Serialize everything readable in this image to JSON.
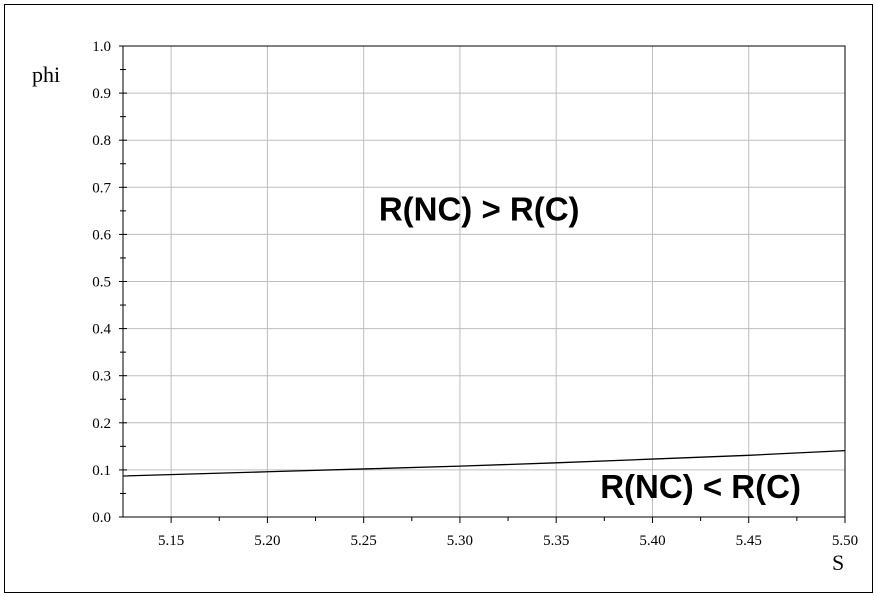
{
  "chart_data": {
    "type": "line",
    "title": "",
    "xlabel": "S",
    "ylabel": "phi",
    "xlim": [
      5.125,
      5.5
    ],
    "ylim": [
      0.0,
      1.0
    ],
    "xticks": [
      5.15,
      5.2,
      5.25,
      5.3,
      5.35,
      5.4,
      5.45,
      5.5
    ],
    "xtick_labels": [
      "5.15",
      "5.20",
      "5.25",
      "5.30",
      "5.35",
      "5.40",
      "5.45",
      "5.50"
    ],
    "yticks": [
      0.0,
      0.1,
      0.2,
      0.3,
      0.4,
      0.5,
      0.6,
      0.7,
      0.8,
      0.9,
      1.0
    ],
    "ytick_labels": [
      "0.0",
      "0.1",
      "0.2",
      "0.3",
      "0.4",
      "0.5",
      "0.6",
      "0.7",
      "0.8",
      "0.9",
      "1.0"
    ],
    "grid": true,
    "series": [
      {
        "color": "#000000",
        "x": [
          5.125,
          5.2,
          5.25,
          5.3,
          5.35,
          5.4,
          5.45,
          5.5
        ],
        "y": [
          0.087,
          0.096,
          0.102,
          0.108,
          0.115,
          0.123,
          0.131,
          0.141
        ]
      }
    ],
    "annotations": [
      {
        "text": "R(NC) > R(C)",
        "x": 5.31,
        "y": 0.63
      },
      {
        "text": "R(NC) < R(C)",
        "x": 5.425,
        "y": 0.04
      }
    ]
  }
}
